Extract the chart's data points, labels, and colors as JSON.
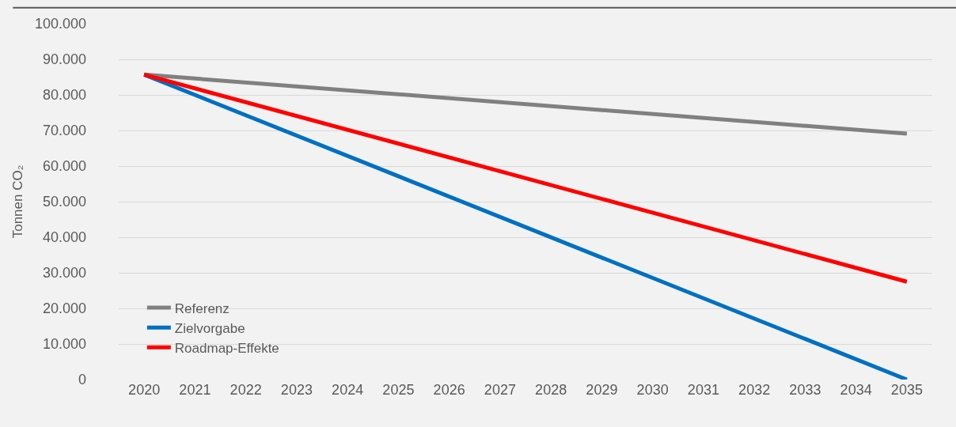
{
  "chart_data": {
    "type": "line",
    "ylabel": "Tonnen CO₂",
    "xlim": [
      2019.5,
      2035.5
    ],
    "xticks": [
      2020,
      2021,
      2022,
      2023,
      2024,
      2025,
      2026,
      2027,
      2028,
      2029,
      2030,
      2031,
      2032,
      2033,
      2034,
      2035
    ],
    "ylim": [
      0,
      100000
    ],
    "yticks": [
      {
        "value": 0,
        "label": "0"
      },
      {
        "value": 10000,
        "label": "10.000"
      },
      {
        "value": 20000,
        "label": "20.000"
      },
      {
        "value": 30000,
        "label": "30.000"
      },
      {
        "value": 40000,
        "label": "40.000"
      },
      {
        "value": 50000,
        "label": "50.000"
      },
      {
        "value": 60000,
        "label": "60.000"
      },
      {
        "value": 70000,
        "label": "70.000"
      },
      {
        "value": 80000,
        "label": "80.000"
      },
      {
        "value": 90000,
        "label": "90.000"
      },
      {
        "value": 100000,
        "label": "100.000"
      }
    ],
    "grid": "y",
    "legend": "bottom left",
    "marker": "none",
    "line_style": "solid",
    "x": [
      2020,
      2035
    ],
    "series": [
      {
        "name": "Referenz",
        "color": "#808080",
        "values": [
          85700,
          69100
        ]
      },
      {
        "name": "Zielvorgabe",
        "color": "#0070c0",
        "values": [
          85700,
          0
        ]
      },
      {
        "name": "Roadmap-Effekte",
        "color": "#ff0000",
        "values": [
          85700,
          27500
        ]
      }
    ]
  }
}
